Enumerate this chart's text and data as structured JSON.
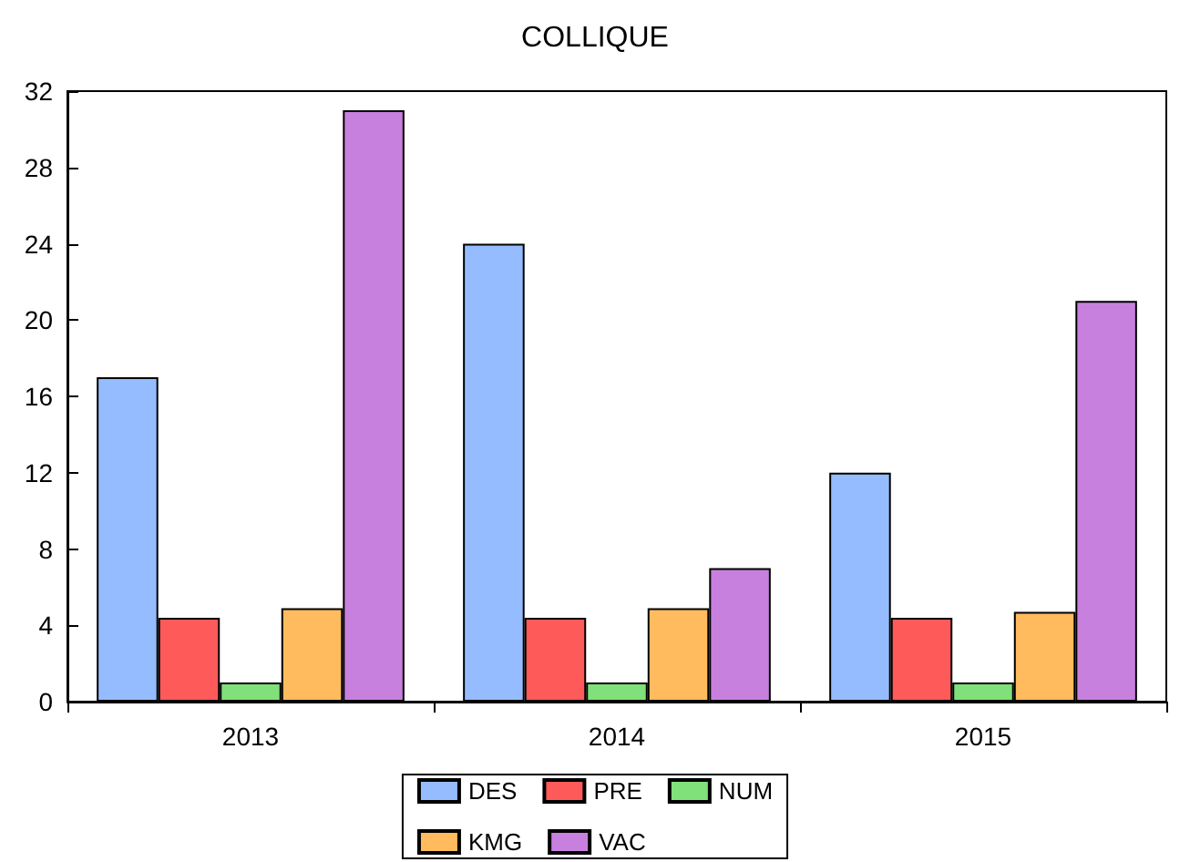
{
  "chart_data": {
    "type": "bar",
    "title": "COLLIQUE",
    "categories": [
      "2013",
      "2014",
      "2015"
    ],
    "series": [
      {
        "name": "DES",
        "color": "#95bcff",
        "values": [
          17,
          24,
          12
        ]
      },
      {
        "name": "PRE",
        "color": "#ff5a5a",
        "values": [
          4.4,
          4.4,
          4.4
        ]
      },
      {
        "name": "NUM",
        "color": "#80e07a",
        "values": [
          1,
          1,
          1
        ]
      },
      {
        "name": "KMG",
        "color": "#ffbb5e",
        "values": [
          4.9,
          4.9,
          4.7
        ]
      },
      {
        "name": "VAC",
        "color": "#c880de",
        "values": [
          31,
          7,
          21
        ]
      }
    ],
    "ylim": [
      0,
      32
    ],
    "yticks": [
      0,
      4,
      8,
      12,
      16,
      20,
      24,
      28,
      32
    ],
    "grid": false,
    "legend": "bottom"
  }
}
